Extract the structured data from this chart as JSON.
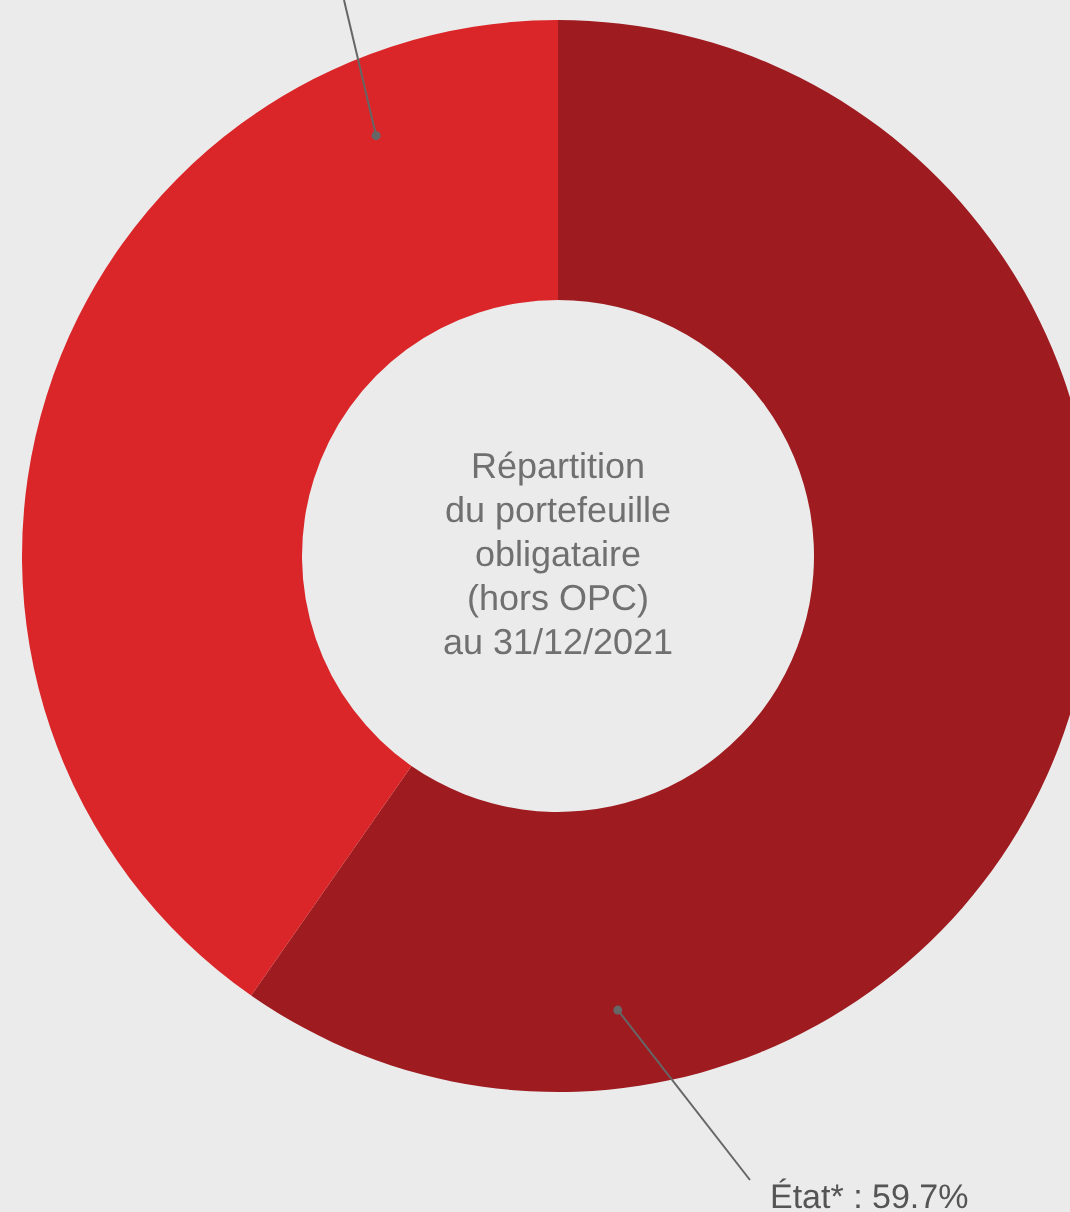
{
  "chart_data": {
    "type": "donut",
    "title": "Répartition\ndu portefeuille\nobligataire\n(hors OPC)\nau 31/12/2021",
    "categories": [
      "État*",
      null
    ],
    "values": [
      59.7,
      40.3
    ],
    "value_labels": [
      "59.7%",
      null
    ],
    "colors": [
      "#9e1b20",
      "#da2629"
    ]
  }
}
